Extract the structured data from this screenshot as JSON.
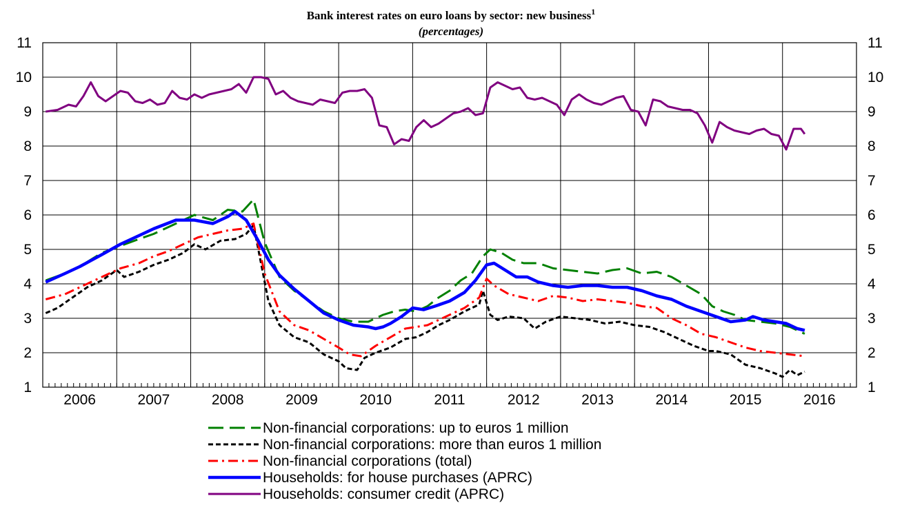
{
  "chart_data": {
    "type": "line",
    "title": "Bank interest rates on euro loans by sector: new business",
    "title_superscript": "1",
    "subtitle": "(percentages)",
    "xlabel": "",
    "ylabel": "",
    "x_range": [
      2005.5,
      2016.5
    ],
    "ylim": [
      1,
      11
    ],
    "y_ticks": [
      "1",
      "2",
      "3",
      "4",
      "5",
      "6",
      "7",
      "8",
      "9",
      "10",
      "11"
    ],
    "x_ticks": [
      "2006",
      "2007",
      "2008",
      "2009",
      "2010",
      "2011",
      "2012",
      "2013",
      "2014",
      "2015",
      "2016"
    ],
    "grid": true,
    "legend_position": "bottom",
    "series": [
      {
        "name": "Non-financial corporations: up to euros 1 million",
        "color": "#008000",
        "style": "long-dash",
        "x": [
          2005.54,
          2005.8,
          2006.0,
          2006.3,
          2006.55,
          2006.8,
          2007.0,
          2007.3,
          2007.55,
          2007.8,
          2008.0,
          2008.2,
          2008.35,
          2008.5,
          2008.7,
          2008.9,
          2009.1,
          2009.3,
          2009.5,
          2009.7,
          2009.9,
          2010.1,
          2010.25,
          2010.4,
          2010.55,
          2010.7,
          2010.85,
          2011.0,
          2011.15,
          2011.3,
          2011.45,
          2011.55,
          2011.7,
          2011.85,
          2012.0,
          2012.2,
          2012.4,
          2012.6,
          2012.8,
          2013.0,
          2013.2,
          2013.4,
          2013.6,
          2013.8,
          2014.0,
          2014.2,
          2014.4,
          2014.55,
          2014.7,
          2014.85,
          2015.0,
          2015.2,
          2015.4,
          2015.6,
          2015.8
        ],
        "values": [
          4.1,
          4.3,
          4.5,
          4.9,
          5.1,
          5.3,
          5.45,
          5.75,
          6.0,
          5.85,
          6.15,
          6.1,
          6.45,
          5.2,
          4.2,
          3.8,
          3.5,
          3.2,
          3.0,
          2.9,
          2.9,
          3.1,
          3.2,
          3.25,
          3.2,
          3.35,
          3.6,
          3.8,
          4.1,
          4.3,
          4.8,
          5.0,
          4.9,
          4.7,
          4.6,
          4.6,
          4.45,
          4.4,
          4.35,
          4.3,
          4.4,
          4.45,
          4.3,
          4.35,
          4.2,
          3.95,
          3.7,
          3.35,
          3.2,
          3.1,
          2.95,
          2.9,
          2.85,
          2.75,
          2.55
        ]
      },
      {
        "name": "Non-financial corporations: more than euros 1 million",
        "color": "#000000",
        "style": "short-dash",
        "x": [
          2005.54,
          2005.7,
          2005.9,
          2006.1,
          2006.3,
          2006.5,
          2006.6,
          2006.8,
          2007.0,
          2007.2,
          2007.4,
          2007.55,
          2007.7,
          2007.9,
          2008.1,
          2008.25,
          2008.35,
          2008.45,
          2008.55,
          2008.7,
          2008.9,
          2009.1,
          2009.3,
          2009.5,
          2009.6,
          2009.75,
          2009.85,
          2010.0,
          2010.2,
          2010.4,
          2010.55,
          2010.7,
          2010.85,
          2011.0,
          2011.2,
          2011.4,
          2011.45,
          2011.55,
          2011.65,
          2011.8,
          2012.0,
          2012.15,
          2012.3,
          2012.5,
          2012.7,
          2012.9,
          2013.1,
          2013.3,
          2013.5,
          2013.7,
          2013.9,
          2014.1,
          2014.3,
          2014.5,
          2014.6,
          2014.8,
          2015.0,
          2015.2,
          2015.4,
          2015.5,
          2015.6,
          2015.7,
          2015.8
        ],
        "values": [
          3.15,
          3.3,
          3.6,
          3.9,
          4.1,
          4.4,
          4.2,
          4.35,
          4.55,
          4.7,
          4.9,
          5.15,
          5.0,
          5.25,
          5.3,
          5.45,
          5.7,
          4.6,
          3.5,
          2.8,
          2.45,
          2.3,
          1.95,
          1.75,
          1.55,
          1.5,
          1.85,
          2.0,
          2.15,
          2.4,
          2.45,
          2.6,
          2.8,
          2.95,
          3.2,
          3.4,
          3.8,
          3.1,
          2.95,
          3.05,
          3.0,
          2.7,
          2.9,
          3.05,
          3.0,
          2.95,
          2.85,
          2.9,
          2.8,
          2.75,
          2.6,
          2.4,
          2.2,
          2.05,
          2.05,
          1.95,
          1.65,
          1.55,
          1.4,
          1.3,
          1.5,
          1.35,
          1.45
        ]
      },
      {
        "name": "Non-financial corporations (total)",
        "color": "#ff0000",
        "style": "dash-dot",
        "x": [
          2005.54,
          2005.8,
          2006.0,
          2006.3,
          2006.55,
          2006.8,
          2007.0,
          2007.2,
          2007.4,
          2007.6,
          2007.8,
          2008.0,
          2008.2,
          2008.35,
          2008.5,
          2008.7,
          2008.9,
          2009.1,
          2009.3,
          2009.5,
          2009.65,
          2009.8,
          2010.0,
          2010.2,
          2010.4,
          2010.55,
          2010.7,
          2010.85,
          2011.0,
          2011.2,
          2011.4,
          2011.5,
          2011.6,
          2011.8,
          2012.0,
          2012.2,
          2012.4,
          2012.6,
          2012.8,
          2013.0,
          2013.2,
          2013.4,
          2013.6,
          2013.8,
          2014.0,
          2014.2,
          2014.4,
          2014.6,
          2014.8,
          2015.0,
          2015.2,
          2015.4,
          2015.6,
          2015.8
        ],
        "values": [
          3.55,
          3.7,
          3.9,
          4.2,
          4.45,
          4.6,
          4.8,
          4.95,
          5.15,
          5.35,
          5.45,
          5.55,
          5.6,
          5.75,
          4.3,
          3.2,
          2.8,
          2.65,
          2.4,
          2.15,
          1.95,
          1.9,
          2.2,
          2.45,
          2.7,
          2.75,
          2.8,
          2.95,
          3.1,
          3.3,
          3.6,
          4.15,
          3.95,
          3.7,
          3.6,
          3.5,
          3.65,
          3.6,
          3.5,
          3.55,
          3.5,
          3.45,
          3.35,
          3.3,
          3.0,
          2.8,
          2.55,
          2.45,
          2.3,
          2.15,
          2.05,
          2.0,
          1.95,
          1.9
        ]
      },
      {
        "name": "Households: for house purchases (APRC)",
        "color": "#0000ff",
        "style": "solid-thick",
        "x": [
          2005.54,
          2005.8,
          2006.0,
          2006.3,
          2006.55,
          2006.8,
          2007.0,
          2007.3,
          2007.55,
          2007.8,
          2008.0,
          2008.1,
          2008.25,
          2008.4,
          2008.55,
          2008.7,
          2008.9,
          2009.1,
          2009.3,
          2009.5,
          2009.7,
          2009.9,
          2010.0,
          2010.1,
          2010.2,
          2010.35,
          2010.5,
          2010.65,
          2010.8,
          2011.0,
          2011.2,
          2011.35,
          2011.5,
          2011.6,
          2011.75,
          2011.9,
          2012.05,
          2012.2,
          2012.4,
          2012.6,
          2012.8,
          2013.0,
          2013.2,
          2013.4,
          2013.6,
          2013.8,
          2014.0,
          2014.2,
          2014.4,
          2014.6,
          2014.8,
          2015.0,
          2015.1,
          2015.25,
          2015.4,
          2015.55,
          2015.7,
          2015.8
        ],
        "values": [
          4.05,
          4.3,
          4.5,
          4.85,
          5.15,
          5.4,
          5.6,
          5.85,
          5.85,
          5.75,
          5.95,
          6.1,
          5.85,
          5.3,
          4.7,
          4.25,
          3.85,
          3.5,
          3.15,
          2.95,
          2.8,
          2.75,
          2.7,
          2.75,
          2.85,
          3.05,
          3.3,
          3.25,
          3.35,
          3.5,
          3.75,
          4.1,
          4.55,
          4.6,
          4.4,
          4.2,
          4.2,
          4.05,
          3.95,
          3.9,
          3.95,
          3.95,
          3.9,
          3.9,
          3.8,
          3.65,
          3.55,
          3.35,
          3.2,
          3.05,
          2.9,
          2.95,
          3.05,
          2.95,
          2.9,
          2.85,
          2.7,
          2.65
        ]
      },
      {
        "name": "Households: consumer credit (APRC)",
        "color": "#800080",
        "style": "solid",
        "x": [
          2005.54,
          2005.7,
          2005.85,
          2005.95,
          2006.05,
          2006.15,
          2006.25,
          2006.35,
          2006.45,
          2006.55,
          2006.65,
          2006.75,
          2006.85,
          2006.95,
          2007.05,
          2007.15,
          2007.25,
          2007.35,
          2007.45,
          2007.55,
          2007.65,
          2007.75,
          2007.85,
          2007.95,
          2008.05,
          2008.15,
          2008.25,
          2008.35,
          2008.45,
          2008.55,
          2008.65,
          2008.75,
          2008.85,
          2008.95,
          2009.05,
          2009.15,
          2009.25,
          2009.35,
          2009.45,
          2009.55,
          2009.65,
          2009.75,
          2009.85,
          2009.95,
          2010.05,
          2010.15,
          2010.25,
          2010.35,
          2010.45,
          2010.55,
          2010.65,
          2010.75,
          2010.85,
          2010.95,
          2011.05,
          2011.15,
          2011.25,
          2011.35,
          2011.45,
          2011.55,
          2011.65,
          2011.75,
          2011.85,
          2011.95,
          2012.05,
          2012.15,
          2012.25,
          2012.35,
          2012.45,
          2012.55,
          2012.65,
          2012.75,
          2012.85,
          2012.95,
          2013.05,
          2013.15,
          2013.25,
          2013.35,
          2013.45,
          2013.55,
          2013.65,
          2013.75,
          2013.85,
          2013.95,
          2014.05,
          2014.15,
          2014.25,
          2014.35,
          2014.45,
          2014.55,
          2014.65,
          2014.75,
          2014.85,
          2014.95,
          2015.05,
          2015.15,
          2015.25,
          2015.35,
          2015.45,
          2015.55,
          2015.65,
          2015.75,
          2015.8
        ],
        "values": [
          9.0,
          9.05,
          9.2,
          9.15,
          9.45,
          9.85,
          9.45,
          9.3,
          9.45,
          9.6,
          9.55,
          9.3,
          9.25,
          9.35,
          9.2,
          9.25,
          9.6,
          9.4,
          9.35,
          9.5,
          9.4,
          9.5,
          9.55,
          9.6,
          9.65,
          9.8,
          9.55,
          10.0,
          10.0,
          9.95,
          9.5,
          9.6,
          9.4,
          9.3,
          9.25,
          9.2,
          9.35,
          9.3,
          9.25,
          9.55,
          9.6,
          9.6,
          9.65,
          9.4,
          8.6,
          8.55,
          8.05,
          8.2,
          8.15,
          8.55,
          8.75,
          8.55,
          8.65,
          8.8,
          8.95,
          9.0,
          9.1,
          8.9,
          8.95,
          9.7,
          9.85,
          9.75,
          9.65,
          9.7,
          9.4,
          9.35,
          9.4,
          9.3,
          9.2,
          8.9,
          9.35,
          9.5,
          9.35,
          9.25,
          9.2,
          9.3,
          9.4,
          9.45,
          9.05,
          9.0,
          8.6,
          9.35,
          9.3,
          9.15,
          9.1,
          9.05,
          9.05,
          8.95,
          8.6,
          8.1,
          8.7,
          8.55,
          8.45,
          8.4,
          8.35,
          8.45,
          8.5,
          8.35,
          8.3,
          7.9,
          8.5,
          8.5,
          8.35
        ]
      }
    ]
  }
}
